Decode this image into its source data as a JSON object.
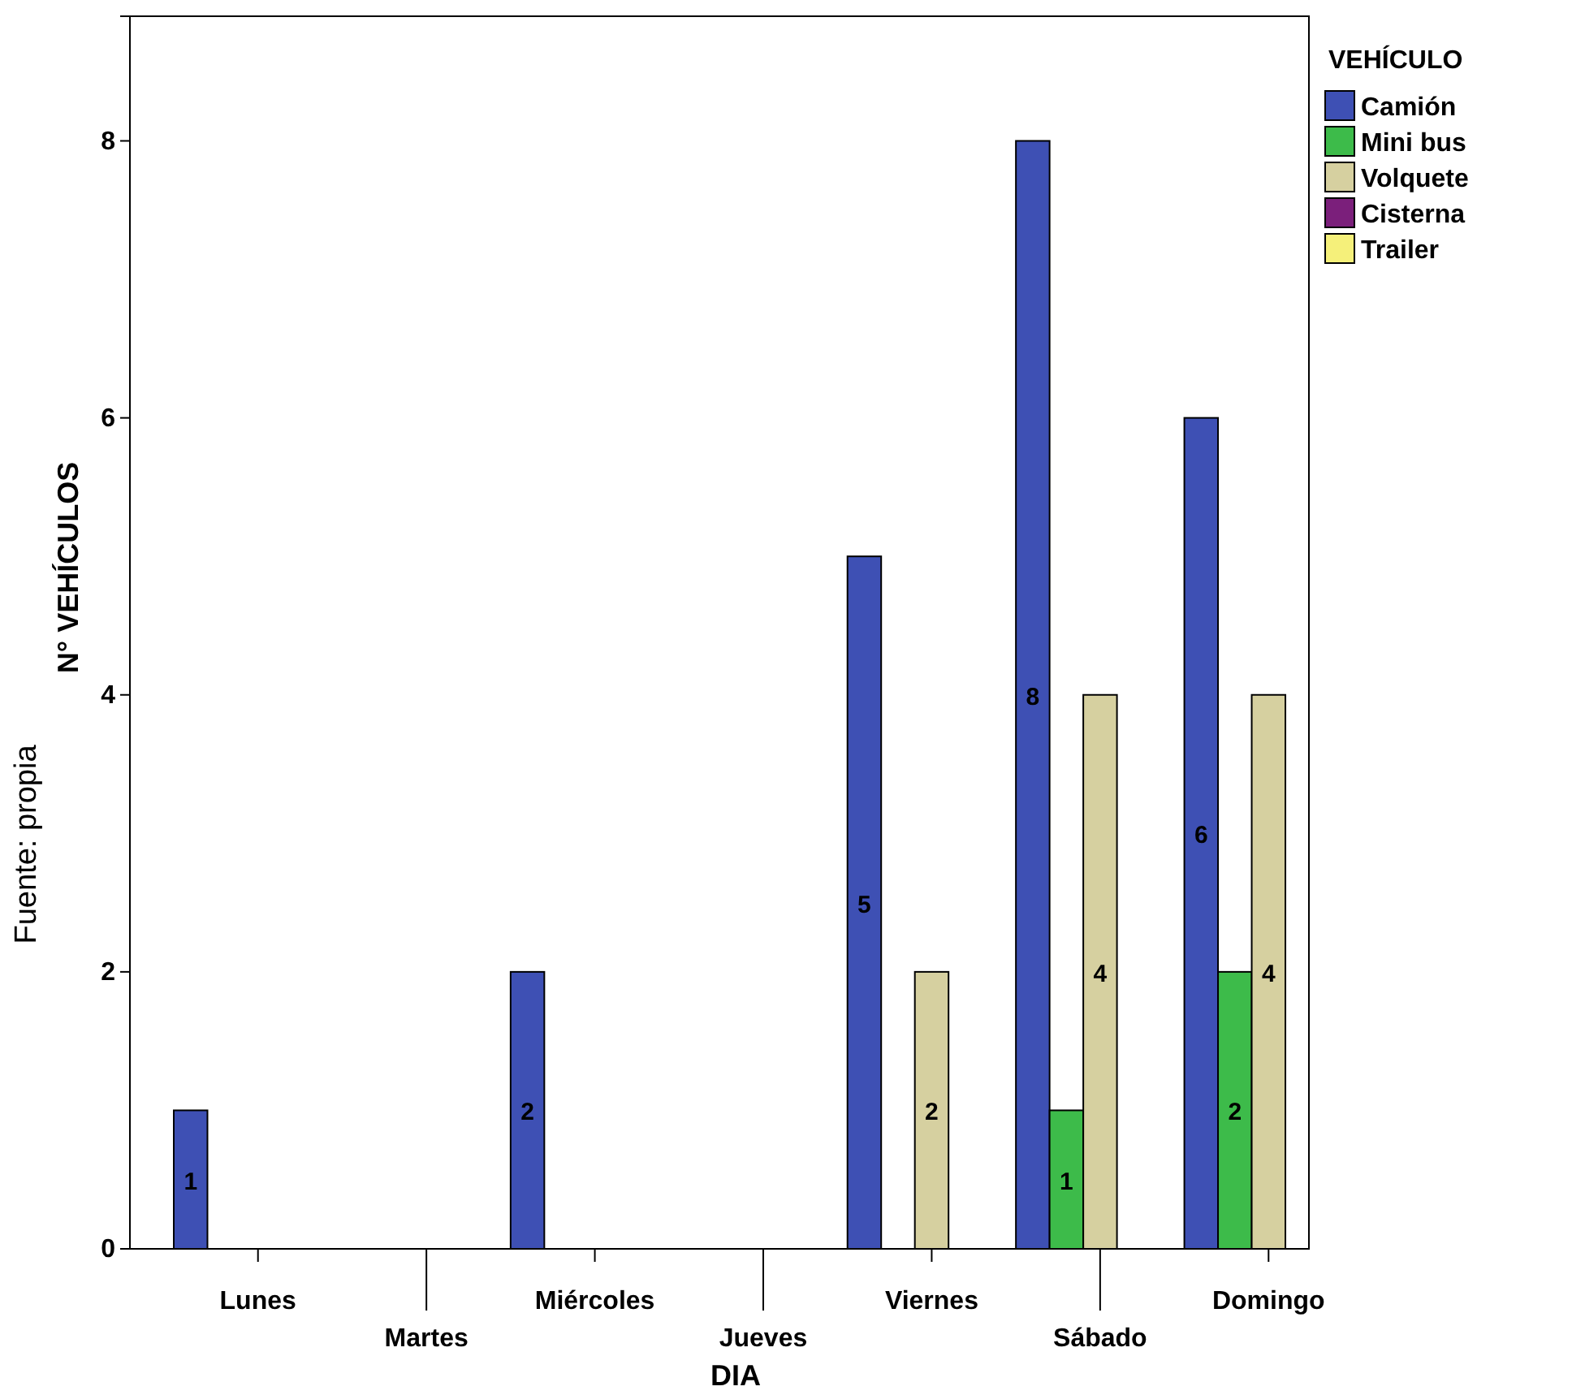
{
  "chart_data": {
    "type": "bar",
    "xlabel": "DIA",
    "ylabel": "N° VEHÍCULOS",
    "legend_title": "VEHÍCULO",
    "annotations": [
      "Fuente: propia"
    ],
    "categories": [
      "Lunes",
      "Martes",
      "Miércoles",
      "Jueves",
      "Viernes",
      "Sábado",
      "Domingo"
    ],
    "series": [
      {
        "name": "Camión",
        "color": "#3e50b4",
        "values": [
          1,
          null,
          2,
          null,
          5,
          8,
          6
        ]
      },
      {
        "name": "Mini bus",
        "color": "#3dbb4a",
        "values": [
          null,
          null,
          null,
          null,
          null,
          1,
          2
        ]
      },
      {
        "name": "Volquete",
        "color": "#d6d0a0",
        "values": [
          null,
          null,
          null,
          null,
          2,
          4,
          4
        ]
      },
      {
        "name": "Cisterna",
        "color": "#7b1f7b",
        "values": [
          null,
          null,
          null,
          null,
          null,
          null,
          null
        ]
      },
      {
        "name": "Trailer",
        "color": "#f5f07a",
        "values": [
          null,
          null,
          null,
          null,
          null,
          null,
          null
        ]
      }
    ],
    "ylim": [
      0,
      8.9
    ],
    "yticks": [
      0,
      2,
      4,
      6,
      8
    ],
    "grid": false,
    "legend": "top right",
    "data_labels": true
  }
}
